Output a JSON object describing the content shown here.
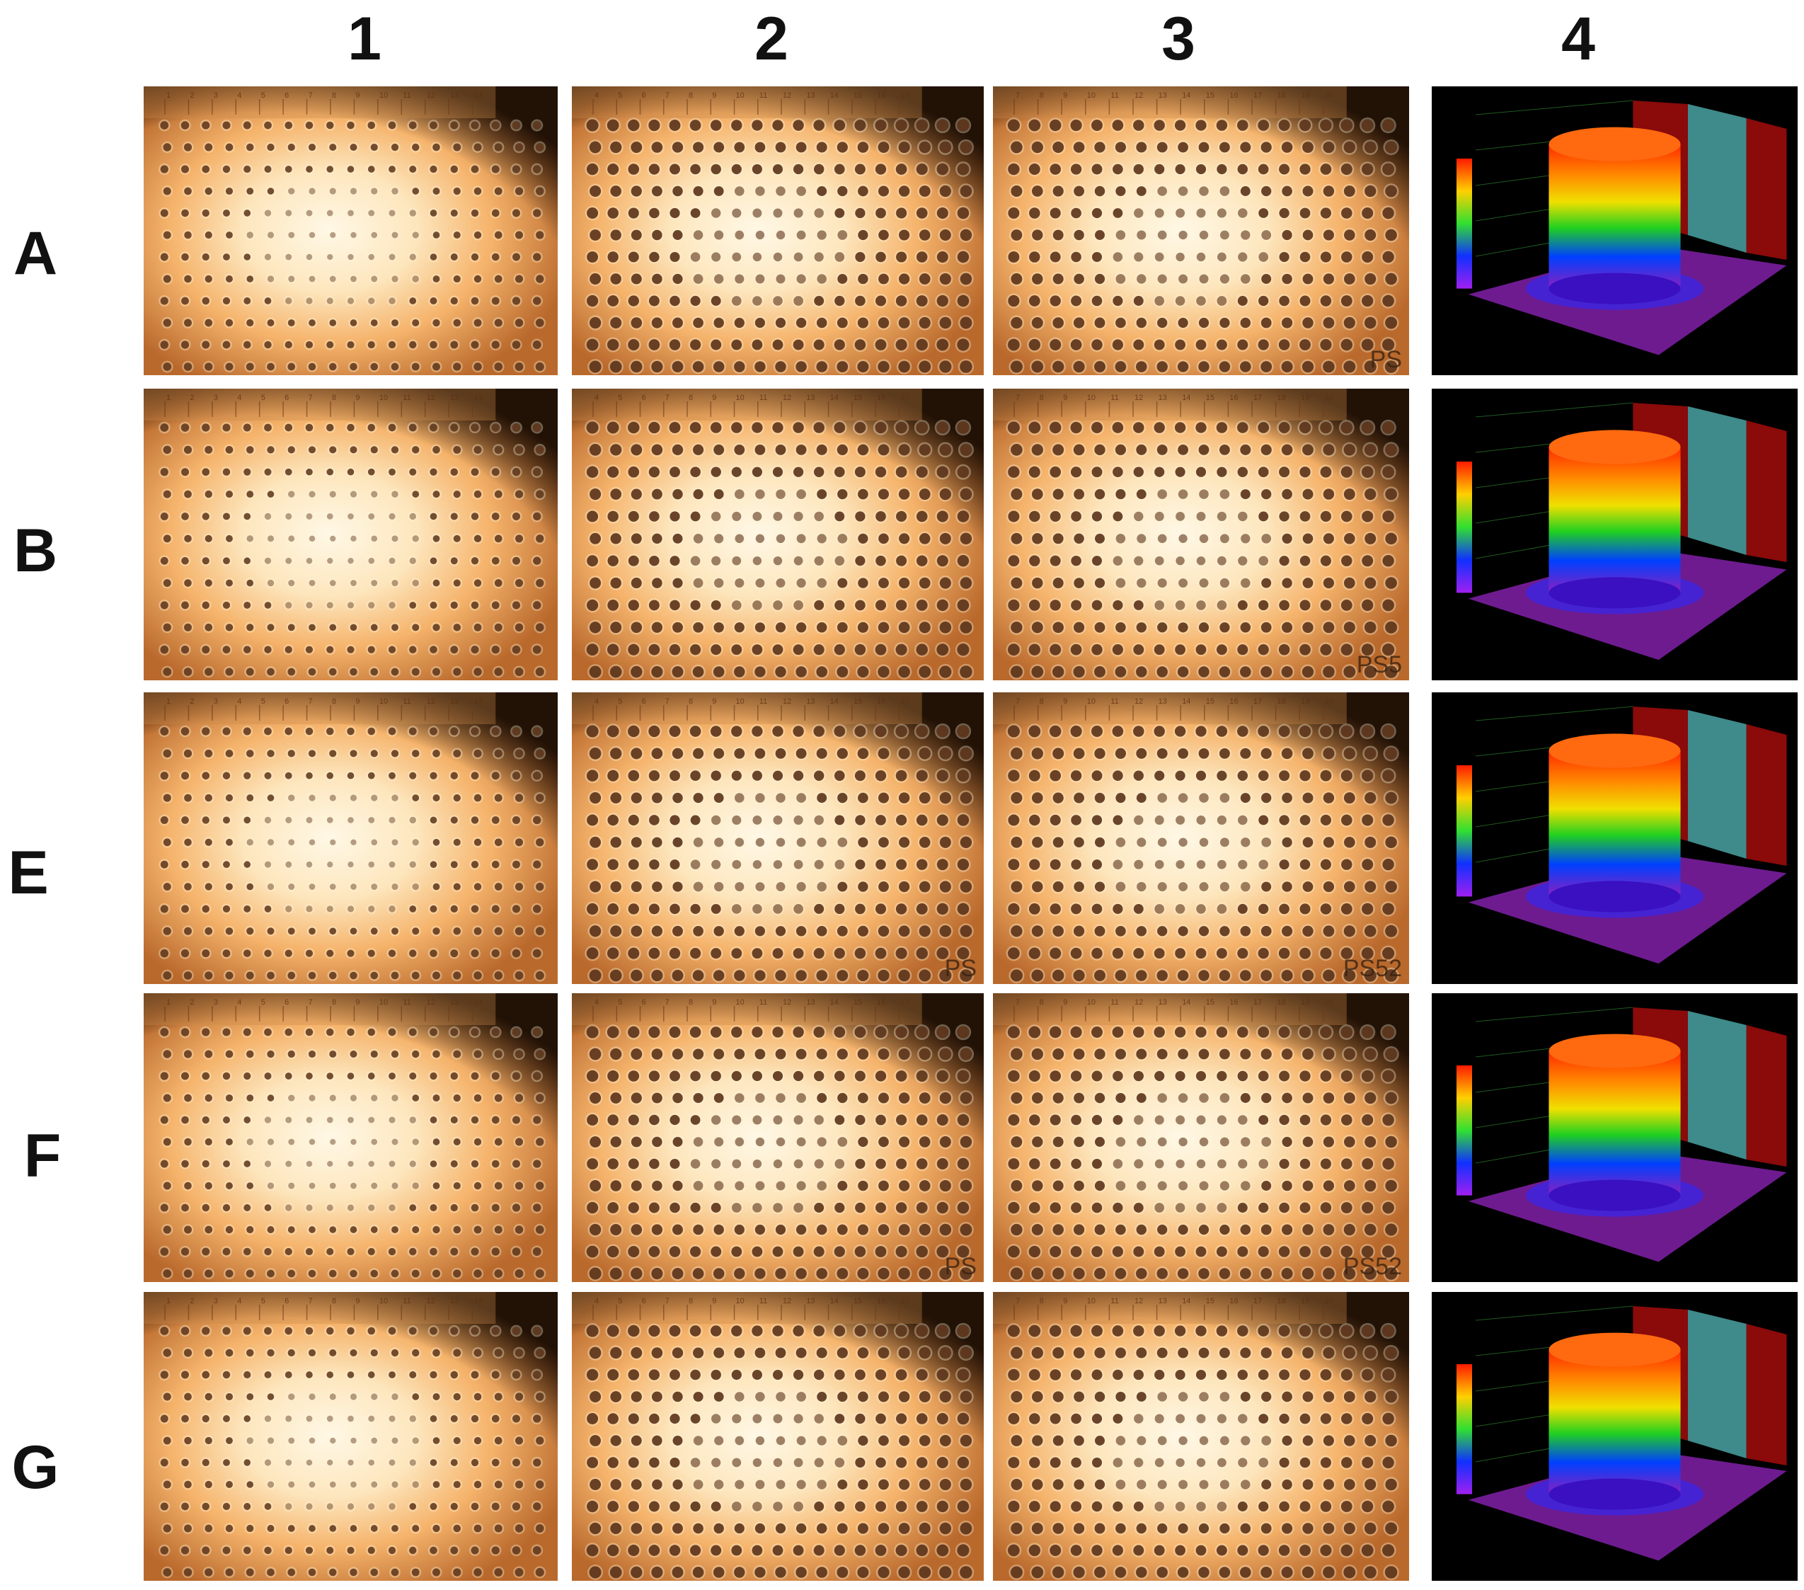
{
  "column_labels": [
    "1",
    "2",
    "3",
    "4"
  ],
  "row_labels": [
    "A",
    "B",
    "E",
    "F",
    "G"
  ],
  "photo_corner_labels": {
    "A3": "PS",
    "B3": "PS5",
    "E2": "PS",
    "E3": "PS52",
    "F2": "PS",
    "F3": "PS52"
  },
  "ruler_numbers": [
    "1",
    "2",
    "3",
    "4",
    "5",
    "6",
    "7",
    "8",
    "9",
    "10",
    "11",
    "12",
    "13",
    "14",
    "15",
    "16",
    "17",
    "18",
    "19",
    "20"
  ],
  "colors": {
    "photo_glow": "#fff8e6",
    "photo_mid": "#f5b36b",
    "photo_edge": "#b9692c",
    "dot": "#5a3218",
    "plot_bg": "#000000",
    "plot_floor": "#7a1ea0",
    "wall_red": "#8b0a0a",
    "wall_teal": "#3f8a8a"
  }
}
